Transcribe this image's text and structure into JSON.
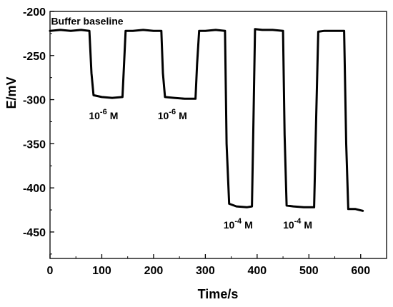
{
  "chart_data": {
    "type": "line",
    "xlabel": "Time/s",
    "ylabel": "E/mV",
    "xlim": [
      0,
      650
    ],
    "ylim": [
      -480,
      -200
    ],
    "x_ticks": [
      0,
      100,
      200,
      300,
      400,
      500,
      600
    ],
    "y_ticks": [
      -200,
      -250,
      -300,
      -350,
      -400,
      -450
    ],
    "grid": false,
    "line_color": "#000000",
    "series": [
      {
        "x": [
          0,
          20,
          40,
          60,
          76,
          80,
          84,
          100,
          120,
          140,
          143,
          146,
          160,
          180,
          200,
          215,
          218,
          222,
          240,
          260,
          281,
          284,
          288,
          300,
          320,
          338,
          341,
          346,
          360,
          380,
          390,
          393,
          396,
          410,
          430,
          450,
          453,
          457,
          470,
          490,
          510,
          514,
          518,
          530,
          550,
          568,
          572,
          576,
          590,
          604
        ],
        "y": [
          -222,
          -221,
          -222,
          -221,
          -222,
          -270,
          -295,
          -297,
          -298,
          -297,
          -260,
          -222,
          -222,
          -221,
          -222,
          -222,
          -270,
          -297,
          -298,
          -299,
          -299,
          -260,
          -222,
          -222,
          -221,
          -222,
          -350,
          -418,
          -421,
          -422,
          -421,
          -320,
          -220,
          -221,
          -221,
          -222,
          -340,
          -420,
          -421,
          -422,
          -422,
          -320,
          -223,
          -222,
          -222,
          -222,
          -350,
          -424,
          -424,
          -426
        ]
      }
    ],
    "annotations": [
      {
        "text": "Buffer baseline",
        "x": 2,
        "y": -215
      },
      {
        "base": "10",
        "exp": "-6",
        "unit": "M",
        "x": 75,
        "y": -322
      },
      {
        "base": "10",
        "exp": "-6",
        "unit": "M",
        "x": 208,
        "y": -322
      },
      {
        "base": "10",
        "exp": "-4",
        "unit": "M",
        "x": 335,
        "y": -446
      },
      {
        "base": "10",
        "exp": "-4",
        "unit": "M",
        "x": 450,
        "y": -446
      }
    ]
  }
}
